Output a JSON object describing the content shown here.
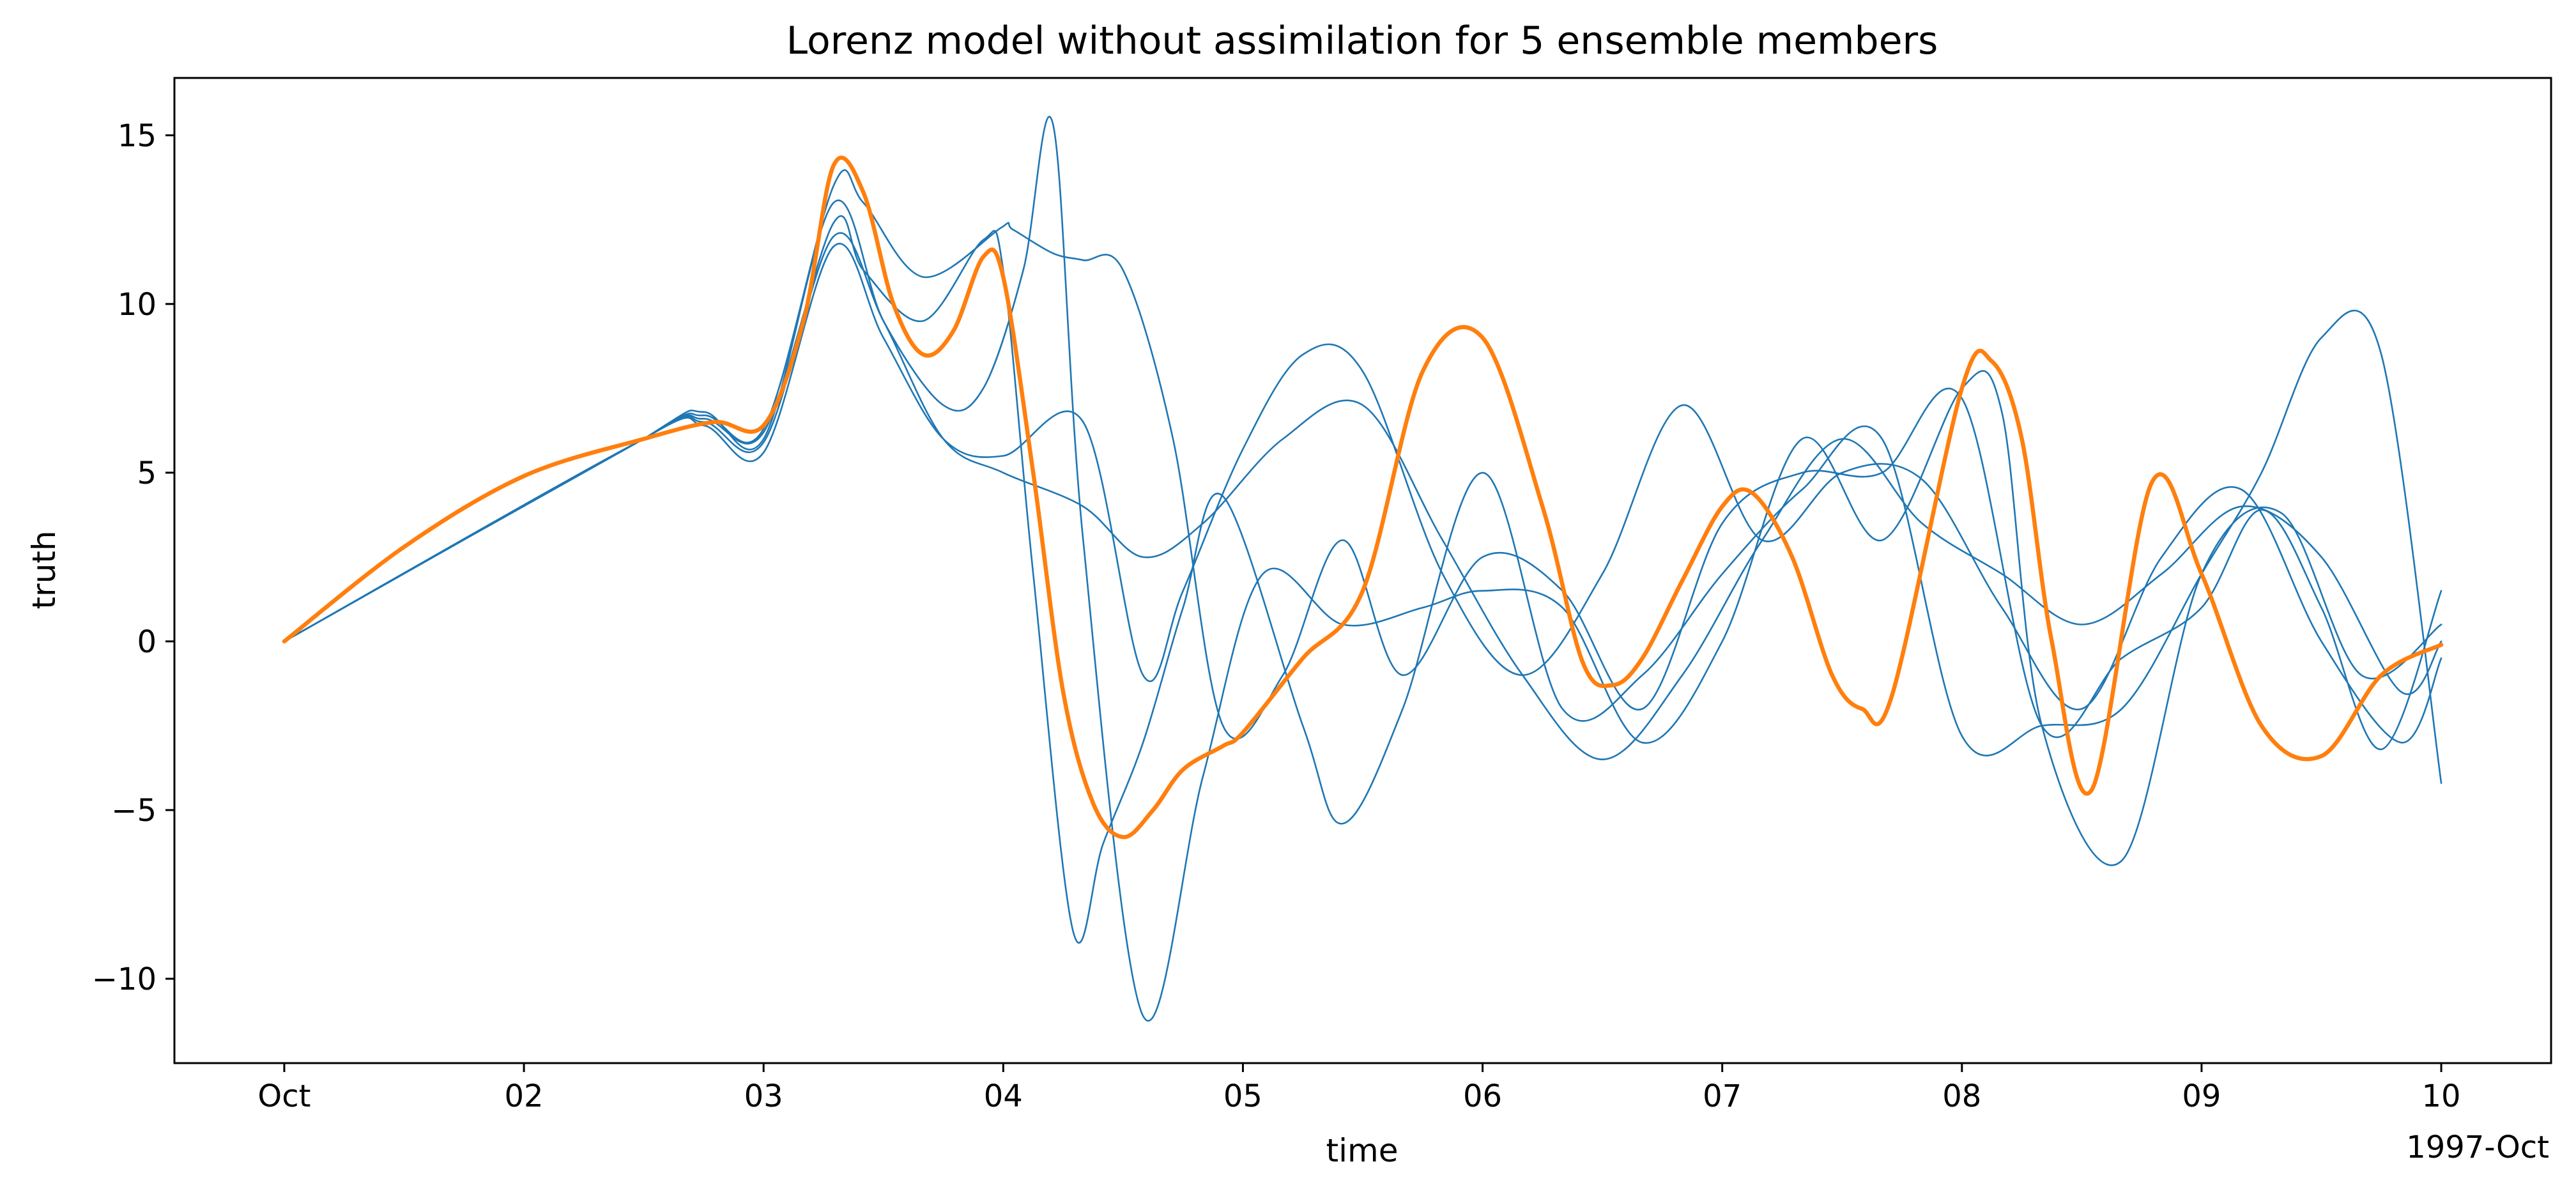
{
  "chart_data": {
    "type": "line",
    "title": "Lorenz model without assimilation for 5 ensemble members",
    "xlabel": "time",
    "ylabel": "truth",
    "x_axis": {
      "type": "date",
      "ticks": [
        "1997-10-01",
        "1997-10-02",
        "1997-10-03",
        "1997-10-04",
        "1997-10-05",
        "1997-10-06",
        "1997-10-07",
        "1997-10-08",
        "1997-10-09",
        "1997-10-10"
      ],
      "tick_labels": [
        "Oct",
        "02",
        "03",
        "04",
        "05",
        "06",
        "07",
        "08",
        "09",
        "10"
      ],
      "offset_label": "1997-Oct",
      "xlim": [
        "1997-09-30 13:00",
        "1997-10-10 11:00"
      ]
    },
    "y_axis": {
      "ticks": [
        -10,
        -5,
        0,
        5,
        10,
        15
      ],
      "tick_labels": [
        "−10",
        "−5",
        "0",
        "5",
        "10",
        "15"
      ],
      "ylim": [
        -12.5,
        16.7
      ]
    },
    "grid": false,
    "legend": "none",
    "colors": {
      "truth": "#ff7f0e",
      "ensemble": "#1f77b4"
    },
    "series": [
      {
        "role": "truth",
        "color": "#ff7f0e",
        "x": [
          "1997-10-01 00:00",
          "1997-10-01 12:00",
          "1997-10-02 00:00",
          "1997-10-02 12:00",
          "1997-10-02 19:00",
          "1997-10-03 00:00",
          "1997-10-03 04:00",
          "1997-10-03 07:00",
          "1997-10-03 10:00",
          "1997-10-03 13:00",
          "1997-10-03 16:00",
          "1997-10-03 19:00",
          "1997-10-03 22:00",
          "1997-10-04 00:00",
          "1997-10-04 03:00",
          "1997-10-04 06:00",
          "1997-10-04 09:00",
          "1997-10-04 12:00",
          "1997-10-04 15:00",
          "1997-10-04 18:00",
          "1997-10-04 22:00",
          "1997-10-05 00:00",
          "1997-10-05 06:00",
          "1997-10-05 12:00",
          "1997-10-05 18:00",
          "1997-10-06 00:00",
          "1997-10-06 06:00",
          "1997-10-06 10:00",
          "1997-10-06 13:00",
          "1997-10-06 16:00",
          "1997-10-06 20:00",
          "1997-10-07 00:00",
          "1997-10-07 03:00",
          "1997-10-07 07:00",
          "1997-10-07 11:00",
          "1997-10-07 14:00",
          "1997-10-07 17:00",
          "1997-10-08 00:00",
          "1997-10-08 03:00",
          "1997-10-08 06:00",
          "1997-10-08 09:00",
          "1997-10-08 13:00",
          "1997-10-08 19:00",
          "1997-10-09 00:00",
          "1997-10-09 06:00",
          "1997-10-09 12:00",
          "1997-10-09 18:00",
          "1997-10-10 00:00"
        ],
        "y": [
          0,
          2.8,
          4.9,
          6.0,
          6.5,
          6.4,
          9.5,
          14.1,
          13.3,
          10.0,
          8.5,
          9.2,
          11.4,
          10.8,
          5.0,
          -1.5,
          -4.8,
          -5.8,
          -5.0,
          -3.8,
          -3.1,
          -2.7,
          -0.5,
          1.5,
          8.0,
          9.0,
          4.0,
          -0.6,
          -1.3,
          -0.5,
          1.8,
          4.0,
          4.4,
          2.5,
          -1.0,
          -2.0,
          -1.6,
          7.5,
          8.3,
          6.0,
          0.0,
          -4.4,
          4.7,
          2.0,
          -2.5,
          -3.4,
          -1.0,
          -0.1
        ]
      },
      {
        "role": "ensemble",
        "color": "#1f77b4",
        "x": [
          "1997-10-01 00:00",
          "1997-10-02 12:00",
          "1997-10-02 18:00",
          "1997-10-03 00:00",
          "1997-10-03 07:00",
          "1997-10-03 10:00",
          "1997-10-03 16:00",
          "1997-10-04 00:00",
          "1997-10-04 01:00",
          "1997-10-04 05:00",
          "1997-10-04 08:00",
          "1997-10-04 12:00",
          "1997-10-04 17:00",
          "1997-10-04 22:00",
          "1997-10-05 04:00",
          "1997-10-05 10:00",
          "1997-10-05 16:00",
          "1997-10-06 00:00",
          "1997-10-06 08:00",
          "1997-10-06 16:00",
          "1997-10-07 00:00",
          "1997-10-07 08:00",
          "1997-10-07 16:00",
          "1997-10-08 00:00",
          "1997-10-08 08:00",
          "1997-10-08 16:00",
          "1997-10-09 00:00",
          "1997-10-09 06:00",
          "1997-10-09 12:00",
          "1997-10-09 18:00",
          "1997-10-10 00:00"
        ],
        "y": [
          0,
          6.0,
          6.7,
          6.3,
          13.5,
          13.0,
          10.8,
          12.3,
          12.2,
          11.5,
          11.3,
          11.0,
          6.0,
          -2.5,
          -1.0,
          3.0,
          -1.0,
          2.5,
          1.5,
          -2.0,
          3.5,
          5.0,
          5.0,
          7.2,
          -2.5,
          -0.5,
          1.0,
          3.9,
          1.0,
          -3.2,
          1.5
        ]
      },
      {
        "role": "ensemble",
        "color": "#1f77b4",
        "x": [
          "1997-10-01 00:00",
          "1997-10-02 12:00",
          "1997-10-02 18:00",
          "1997-10-03 00:00",
          "1997-10-03 07:00",
          "1997-10-03 10:00",
          "1997-10-03 16:00",
          "1997-10-03 22:00",
          "1997-10-04 00:00",
          "1997-10-04 03:00",
          "1997-10-04 07:00",
          "1997-10-04 10:00",
          "1997-10-04 14:00",
          "1997-10-04 18:00",
          "1997-10-04 22:00",
          "1997-10-05 06:00",
          "1997-10-05 10:00",
          "1997-10-05 16:00",
          "1997-10-06 00:00",
          "1997-10-06 08:00",
          "1997-10-06 16:00",
          "1997-10-07 00:00",
          "1997-10-07 08:00",
          "1997-10-07 16:00",
          "1997-10-08 00:00",
          "1997-10-08 08:00",
          "1997-10-08 16:00",
          "1997-10-09 00:00",
          "1997-10-09 06:00",
          "1997-10-09 12:00",
          "1997-10-09 18:00",
          "1997-10-10 00:00"
        ],
        "y": [
          0,
          6.0,
          6.6,
          6.2,
          12.4,
          11.0,
          9.5,
          11.9,
          11.0,
          2.0,
          -8.6,
          -6.0,
          -3.0,
          1.0,
          4.3,
          -2.5,
          -5.4,
          -2.0,
          5.0,
          -2.0,
          -1.0,
          2.0,
          4.5,
          6.0,
          -2.8,
          -2.5,
          -2.0,
          2.0,
          5.0,
          9.0,
          8.5,
          -4.2
        ]
      },
      {
        "role": "ensemble",
        "color": "#1f77b4",
        "x": [
          "1997-10-01 00:00",
          "1997-10-02 12:00",
          "1997-10-02 18:00",
          "1997-10-03 00:00",
          "1997-10-03 07:00",
          "1997-10-03 12:00",
          "1997-10-03 18:00",
          "1997-10-03 22:00",
          "1997-10-04 02:00",
          "1997-10-04 05:00",
          "1997-10-04 08:00",
          "1997-10-04 14:00",
          "1997-10-04 20:00",
          "1997-10-05 02:00",
          "1997-10-05 10:00",
          "1997-10-05 18:00",
          "1997-10-06 00:00",
          "1997-10-06 08:00",
          "1997-10-06 16:00",
          "1997-10-07 00:00",
          "1997-10-07 08:00",
          "1997-10-07 16:00",
          "1997-10-08 00:00",
          "1997-10-08 04:00",
          "1997-10-08 08:00",
          "1997-10-08 16:00",
          "1997-10-09 00:00",
          "1997-10-09 08:00",
          "1997-10-09 16:00",
          "1997-10-10 00:00"
        ],
        "y": [
          0,
          6.0,
          6.8,
          6.0,
          13.0,
          9.5,
          7.0,
          7.5,
          11.0,
          15.3,
          3.0,
          -11.1,
          -4.0,
          2.0,
          0.5,
          1.0,
          1.5,
          1.0,
          -3.0,
          0.0,
          6.0,
          3.0,
          7.5,
          6.8,
          -2.5,
          -6.5,
          2.0,
          3.8,
          -1.0,
          0.5
        ]
      },
      {
        "role": "ensemble",
        "color": "#1f77b4",
        "x": [
          "1997-10-01 00:00",
          "1997-10-02 12:00",
          "1997-10-02 18:00",
          "1997-10-03 00:00",
          "1997-10-03 07:00",
          "1997-10-03 12:00",
          "1997-10-03 18:00",
          "1997-10-04 00:00",
          "1997-10-04 08:00",
          "1997-10-04 14:00",
          "1997-10-04 18:00",
          "1997-10-05 00:00",
          "1997-10-05 06:00",
          "1997-10-05 12:00",
          "1997-10-05 20:00",
          "1997-10-06 04:00",
          "1997-10-06 12:00",
          "1997-10-06 20:00",
          "1997-10-07 04:00",
          "1997-10-07 12:00",
          "1997-10-07 20:00",
          "1997-10-08 04:00",
          "1997-10-08 12:00",
          "1997-10-08 20:00",
          "1997-10-09 04:00",
          "1997-10-09 12:00",
          "1997-10-09 20:00",
          "1997-10-10 00:00"
        ],
        "y": [
          0,
          6.0,
          6.4,
          5.6,
          11.7,
          9.0,
          6.0,
          5.5,
          6.5,
          -1.0,
          1.5,
          5.7,
          8.5,
          8.0,
          2.0,
          -1.0,
          2.0,
          7.0,
          3.0,
          5.0,
          4.8,
          1.0,
          -2.0,
          2.5,
          4.5,
          0.0,
          -3.0,
          -0.5
        ]
      },
      {
        "role": "ensemble",
        "color": "#1f77b4",
        "x": [
          "1997-10-01 00:00",
          "1997-10-02 12:00",
          "1997-10-02 18:00",
          "1997-10-03 00:00",
          "1997-10-03 07:00",
          "1997-10-03 12:00",
          "1997-10-03 18:00",
          "1997-10-04 00:00",
          "1997-10-04 08:00",
          "1997-10-04 14:00",
          "1997-10-04 20:00",
          "1997-10-05 04:00",
          "1997-10-05 12:00",
          "1997-10-05 20:00",
          "1997-10-06 04:00",
          "1997-10-06 12:00",
          "1997-10-06 20:00",
          "1997-10-07 04:00",
          "1997-10-07 12:00",
          "1997-10-07 20:00",
          "1997-10-08 04:00",
          "1997-10-08 12:00",
          "1997-10-08 20:00",
          "1997-10-09 04:00",
          "1997-10-09 12:00",
          "1997-10-09 20:00",
          "1997-10-10 00:00"
        ],
        "y": [
          0,
          6.0,
          6.5,
          5.9,
          12.0,
          9.5,
          6.0,
          5.0,
          4.0,
          2.5,
          3.5,
          6.0,
          7.0,
          3.0,
          -1.0,
          -3.5,
          -1.0,
          3.0,
          6.0,
          3.5,
          2.0,
          0.5,
          2.0,
          4.0,
          2.5,
          -1.5,
          0.0
        ]
      }
    ]
  }
}
